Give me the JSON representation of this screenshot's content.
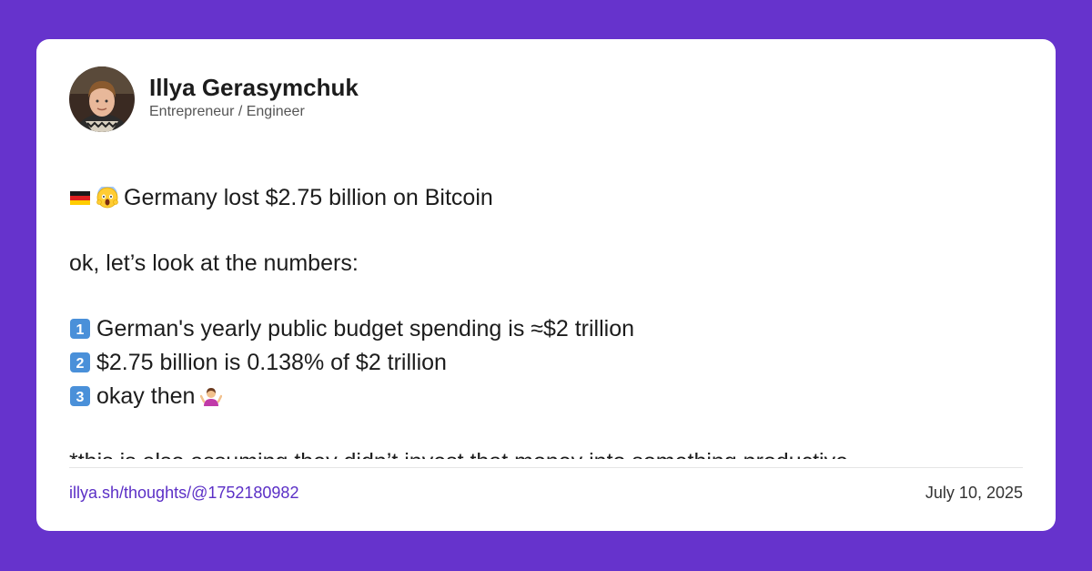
{
  "author": {
    "name": "Illya Gerasymchuk",
    "title": "Entrepreneur / Engineer",
    "avatar_icon": "profile-photo"
  },
  "post": {
    "headline": "Germany lost $2.75 billion on Bitcoin",
    "headline_emojis": [
      "germany-flag-icon",
      "screaming-face-icon"
    ],
    "intro": "ok, let’s look at the numbers:",
    "points": [
      {
        "marker": "1",
        "text": "German's yearly public budget spending is ≈$2 trillion"
      },
      {
        "marker": "2",
        "text": "$2.75 billion is 0.138% of $2 trillion"
      },
      {
        "marker": "3",
        "text": "okay then"
      }
    ],
    "point3_emoji": "shrugging-person-icon",
    "footnote": "*this is also assuming they didn’t invest that money into something productive"
  },
  "footer": {
    "link": "illya.sh/thoughts/@1752180982",
    "date": "July 10, 2025"
  },
  "colors": {
    "background": "#6633cc",
    "card": "#ffffff",
    "link": "#5b2fc6",
    "keycap": "#4a90d9"
  }
}
